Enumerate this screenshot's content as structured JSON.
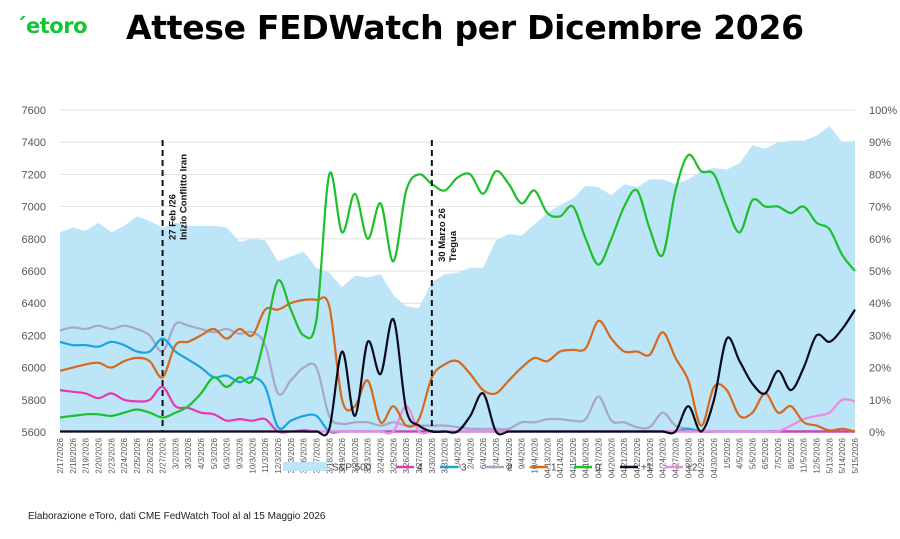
{
  "brand": {
    "logo_text": "´etoro"
  },
  "title": "Attese FEDWatch per Dicembre 2026",
  "footnote": "Elaborazione eToro, dati CME FedWatch Tool al al 15 Maggio 2026",
  "colors": {
    "sp500_fill": "#bde5f8",
    "series4": "#e838b0",
    "series3": "#1aa3e0",
    "series2": "#a7a7c6",
    "series1": "#d5691d",
    "series0": "#1dbf2a",
    "seriesP1": "#0b0b1e",
    "seriesP2": "#ea8ae0",
    "vline": "#111111",
    "grid": "#d9d9d9"
  },
  "chart_data": {
    "type": "line",
    "title": "Attese FEDWatch per Dicembre 2026",
    "xlabel": "",
    "ylabel_left": "",
    "ylabel_right": "",
    "ylim_left": [
      5600,
      7600
    ],
    "ylim_right": [
      0,
      100
    ],
    "yticks_left": [
      "7600",
      "7400",
      "7200",
      "7000",
      "6800",
      "6600",
      "6400",
      "6200",
      "6000",
      "5800",
      "5600"
    ],
    "yticks_right": [
      "100%",
      "90%",
      "80%",
      "70%",
      "60%",
      "50%",
      "40%",
      "30%",
      "20%",
      "10%",
      "0%"
    ],
    "grid": true,
    "legend_position": "bottom",
    "x_tick_labels": [
      "2/17/2026",
      "2/18/2026",
      "2/19/2026",
      "2/20/2026",
      "2/23/2026",
      "2/24/2026",
      "2/25/2026",
      "2/26/2026",
      "2/27/2026",
      "3/2/2026",
      "3/3/2026",
      "4/3/2026",
      "5/3/2026",
      "6/3/2026",
      "9/3/2026",
      "10/3/2026",
      "11/3/2026",
      "12/3/2026",
      "3/13/2026",
      "3/16/2026",
      "3/17/2026",
      "3/18/2026",
      "3/19/2026",
      "3/20/2026",
      "3/23/2026",
      "3/24/2026",
      "3/25/2026",
      "3/26/2026",
      "3/27/2026",
      "3/30/2026",
      "3/31/2026",
      "1/4/2026",
      "2/4/2026",
      "6/4/2026",
      "7/4/2026",
      "8/4/2026",
      "9/4/2026",
      "10/4/2026",
      "04/13/2026",
      "04/14/2026",
      "04/15/2026",
      "04/16/2026",
      "04/17/2026",
      "04/20/2026",
      "04/21/2026",
      "04/22/2026",
      "04/23/2026",
      "04/24/2026",
      "04/27/2026",
      "04/28/2026",
      "04/29/2026",
      "04/30/2026",
      "1/5/2026",
      "4/5/2026",
      "5/5/2026",
      "6/5/2026",
      "7/5/2026",
      "8/5/2026",
      "11/5/2026",
      "12/5/2026",
      "5/13/2026",
      "5/14/2026",
      "5/15/2026"
    ],
    "annotations": [
      {
        "x_index": 8,
        "lines": [
          "27 Feb /26",
          "Inizio Conflitto Iran"
        ]
      },
      {
        "x_index": 29,
        "lines": [
          "30 Marzo 26",
          "Tregua"
        ]
      }
    ],
    "series": [
      {
        "name": "S&P 500",
        "axis": "left",
        "kind": "area",
        "values": [
          6840,
          6870,
          6850,
          6900,
          6840,
          6880,
          6940,
          6910,
          6870,
          6900,
          6880,
          6880,
          6880,
          6870,
          6780,
          6800,
          6790,
          6660,
          6690,
          6720,
          6620,
          6590,
          6500,
          6570,
          6560,
          6580,
          6450,
          6380,
          6370,
          6530,
          6580,
          6590,
          6620,
          6620,
          6790,
          6830,
          6820,
          6890,
          6960,
          7010,
          7050,
          7130,
          7120,
          7070,
          7140,
          7120,
          7170,
          7170,
          7140,
          7170,
          7220,
          7240,
          7230,
          7270,
          7380,
          7360,
          7400,
          7410,
          7410,
          7440,
          7500,
          7400,
          7410
        ]
      },
      {
        "name": "4",
        "axis": "right",
        "kind": "line",
        "values": [
          13,
          12.5,
          12,
          10.5,
          12,
          10,
          9.5,
          10,
          14,
          8,
          7.5,
          6,
          5.5,
          3.5,
          4,
          3.5,
          4,
          0,
          0,
          0.5,
          0,
          0,
          0,
          0,
          0,
          0,
          0,
          0,
          0,
          0,
          0,
          0,
          0,
          0,
          0,
          0,
          0,
          0,
          0,
          0,
          0,
          0,
          0,
          0,
          0,
          0,
          0,
          0,
          0,
          0,
          0,
          0,
          0,
          0,
          0,
          0,
          0,
          0,
          0,
          0,
          0,
          0,
          0
        ]
      },
      {
        "name": "3",
        "axis": "right",
        "kind": "line",
        "values": [
          28,
          27,
          27,
          26.5,
          28,
          27,
          25,
          25,
          29,
          25,
          22.5,
          20,
          17,
          17.5,
          15.5,
          17,
          14,
          1.5,
          3.5,
          5,
          5,
          0,
          0,
          0,
          0,
          0,
          0,
          0,
          0,
          0,
          0,
          0,
          0,
          0,
          0,
          0,
          0,
          0,
          0,
          0,
          0,
          0,
          0,
          0,
          0,
          0,
          0,
          0,
          0,
          1,
          0,
          0,
          0,
          0,
          0,
          0,
          0,
          0,
          0,
          0,
          0,
          0,
          0
        ]
      },
      {
        "name": "2",
        "axis": "right",
        "kind": "line",
        "values": [
          31.5,
          32.5,
          32,
          33,
          32,
          33,
          32,
          30,
          25,
          33.5,
          33,
          32,
          31,
          32,
          30.5,
          31,
          27,
          12,
          16,
          20,
          20,
          5,
          2.5,
          3,
          3,
          2,
          3,
          2,
          2,
          2,
          2,
          1.5,
          1,
          1,
          1,
          1,
          3,
          3,
          4,
          4,
          3.5,
          4,
          11,
          3.5,
          3,
          1.5,
          1.5,
          6,
          2,
          1,
          0,
          0,
          0,
          0,
          0,
          0,
          0,
          0,
          0,
          0,
          0,
          0,
          0
        ]
      },
      {
        "name": "1",
        "axis": "right",
        "kind": "line",
        "values": [
          19,
          20,
          21,
          21.5,
          20,
          22,
          23,
          22,
          17,
          27,
          28,
          30,
          32,
          29,
          32,
          30,
          38,
          38,
          40,
          41,
          41,
          39,
          10,
          8,
          16,
          3,
          8,
          2,
          4,
          17,
          21,
          22,
          18,
          13,
          12,
          16,
          20,
          23,
          22,
          25,
          25.5,
          26,
          34.5,
          29,
          25,
          25,
          24,
          31,
          23,
          16,
          2,
          14,
          13,
          5,
          6,
          12,
          6,
          8,
          3,
          2,
          0.5,
          1,
          0
        ]
      },
      {
        "name": "0",
        "axis": "right",
        "kind": "line",
        "values": [
          4.5,
          5,
          5.5,
          5.5,
          5,
          6,
          7,
          6,
          4.5,
          6,
          8,
          12,
          17,
          14,
          17,
          16,
          30,
          47,
          38,
          30,
          35,
          80,
          62,
          74,
          60,
          71,
          53,
          75,
          80,
          77,
          75,
          79,
          80,
          74,
          81,
          77,
          71,
          75,
          68,
          67,
          70,
          60,
          52,
          60,
          70,
          75,
          63,
          55,
          75,
          86,
          81,
          80,
          70,
          62,
          72,
          70,
          70,
          68,
          70,
          65,
          63,
          55,
          50
        ]
      },
      {
        "name": "+1",
        "axis": "right",
        "kind": "line",
        "values": [
          0,
          0,
          0,
          0,
          0,
          0,
          0,
          0,
          0,
          0,
          0,
          0,
          0,
          0,
          0,
          0,
          0,
          0,
          0,
          0,
          0,
          1,
          25,
          5,
          28,
          18,
          35,
          7,
          2,
          0,
          0,
          0,
          5,
          12,
          0,
          0,
          0,
          0,
          0,
          0,
          0,
          0,
          0,
          0,
          0,
          0,
          0,
          0,
          0,
          8,
          0,
          10,
          29,
          22,
          15,
          12,
          19,
          13,
          20,
          30,
          28,
          32,
          38
        ]
      },
      {
        "name": "+2",
        "axis": "right",
        "kind": "line",
        "values": [
          0,
          0,
          0,
          0,
          0,
          0,
          0,
          0,
          0,
          0,
          0,
          0,
          0,
          0,
          0,
          0,
          0,
          0,
          0,
          0,
          0,
          0,
          0,
          0,
          0,
          0,
          0,
          8,
          0,
          0,
          0,
          0,
          0,
          0,
          0,
          0,
          0,
          0,
          0,
          0,
          0,
          0,
          0,
          0,
          0,
          0,
          0,
          0,
          0,
          0,
          0,
          0,
          0,
          0,
          0,
          0,
          0,
          2,
          4,
          5,
          6,
          10,
          9.5
        ]
      }
    ]
  }
}
